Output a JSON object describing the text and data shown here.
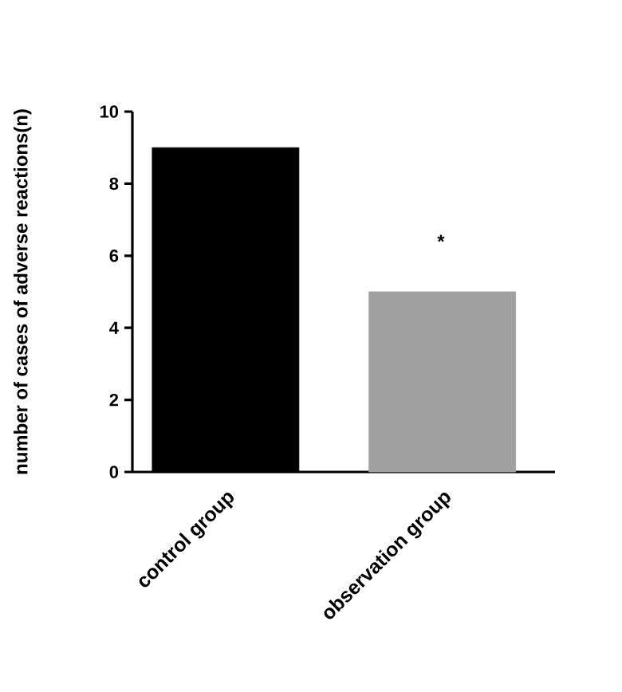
{
  "chart_data": {
    "type": "bar",
    "ylabel": "number of cases of adverse reactions(n)",
    "categories": [
      "control group",
      "observation group"
    ],
    "values": [
      9,
      5
    ],
    "colors": [
      "#000000",
      "#a0a0a0"
    ],
    "ylim": [
      0,
      10
    ],
    "yticks": [
      0,
      2,
      4,
      6,
      8,
      10
    ],
    "annotations": [
      "*"
    ]
  }
}
